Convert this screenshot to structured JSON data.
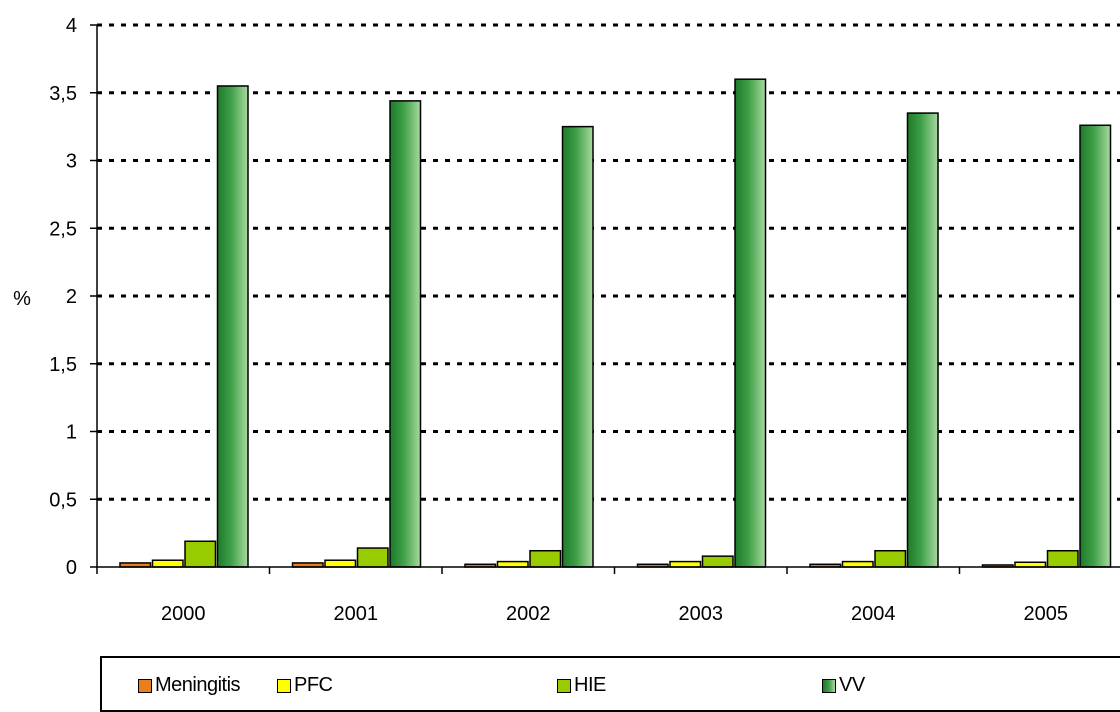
{
  "chart_data": {
    "type": "bar",
    "ylabel": "%",
    "ylim": [
      0,
      4
    ],
    "yticks": [
      "0",
      "0,5",
      "1",
      "1,5",
      "2",
      "2,5",
      "3",
      "3,5",
      "4"
    ],
    "ytick_values": [
      0,
      0.5,
      1,
      1.5,
      2,
      2.5,
      3,
      3.5,
      4
    ],
    "categories": [
      "2000",
      "2001",
      "2002",
      "2003",
      "2004",
      "2005"
    ],
    "grid": "dotted-horizontal",
    "legend_position": "bottom",
    "series": [
      {
        "name": "Meningitis",
        "color": "#e87e1c",
        "values": [
          0.03,
          0.03,
          0.02,
          0.02,
          0.02,
          0.015
        ]
      },
      {
        "name": "PFC",
        "color": "#ffff00",
        "values": [
          0.05,
          0.05,
          0.04,
          0.04,
          0.04,
          0.035
        ]
      },
      {
        "name": "HIE",
        "color": "#99cc00",
        "values": [
          0.19,
          0.14,
          0.12,
          0.08,
          0.12,
          0.12
        ]
      },
      {
        "name": "VV",
        "color": "#3a9a3a",
        "values": [
          3.55,
          3.44,
          3.25,
          3.6,
          3.35,
          3.26
        ]
      }
    ]
  }
}
